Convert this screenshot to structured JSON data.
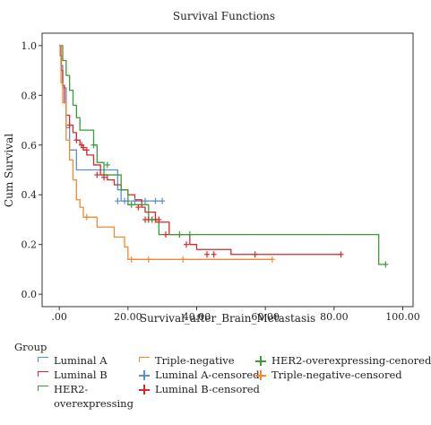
{
  "chart_data": {
    "type": "line",
    "title": "Survival Functions",
    "xlabel": "Survival_after_Brain_Metastasis",
    "ylabel": "Cum Survival",
    "xlim": [
      -5,
      103
    ],
    "ylim": [
      -0.05,
      1.05
    ],
    "x_ticks": [
      0,
      20,
      40,
      60,
      80,
      100
    ],
    "x_tick_labels": [
      ".00",
      "20.00",
      "40.00",
      "60.00",
      "80.00",
      "100.00"
    ],
    "y_ticks": [
      0,
      0.2,
      0.4,
      0.6,
      0.8,
      1.0
    ],
    "y_tick_labels": [
      "0.0",
      "0.2",
      "0.4",
      "0.6",
      "0.8",
      "1.0"
    ],
    "grid": false,
    "legend_position": "bottom",
    "legend_title": "Group",
    "series": [
      {
        "name": "Luminal A",
        "color": "#5b8fd1",
        "kind": "step",
        "points": [
          [
            0,
            1.0
          ],
          [
            0.5,
            0.92
          ],
          [
            1,
            0.83
          ],
          [
            2,
            0.67
          ],
          [
            3,
            0.58
          ],
          [
            5,
            0.5
          ],
          [
            17,
            0.42
          ],
          [
            18,
            0.375
          ],
          [
            30,
            0.375
          ]
        ]
      },
      {
        "name": "Luminal B",
        "color": "#d42a2a",
        "kind": "step",
        "points": [
          [
            0,
            1.0
          ],
          [
            0.3,
            0.96
          ],
          [
            0.6,
            0.9
          ],
          [
            1,
            0.84
          ],
          [
            1.5,
            0.77
          ],
          [
            2,
            0.72
          ],
          [
            3,
            0.68
          ],
          [
            4,
            0.65
          ],
          [
            5,
            0.62
          ],
          [
            6,
            0.6
          ],
          [
            7,
            0.58
          ],
          [
            8,
            0.56
          ],
          [
            10,
            0.52
          ],
          [
            12,
            0.48
          ],
          [
            14,
            0.46
          ],
          [
            16,
            0.44
          ],
          [
            18,
            0.42
          ],
          [
            20,
            0.4
          ],
          [
            22,
            0.38
          ],
          [
            24,
            0.35
          ],
          [
            25,
            0.33
          ],
          [
            28,
            0.29
          ],
          [
            32,
            0.24
          ],
          [
            38,
            0.2
          ],
          [
            40,
            0.18
          ],
          [
            50,
            0.16
          ],
          [
            82,
            0.16
          ]
        ]
      },
      {
        "name": "HER2-overexpressing",
        "color": "#3a9c3a",
        "kind": "step",
        "points": [
          [
            0,
            1.0
          ],
          [
            1,
            0.94
          ],
          [
            2,
            0.88
          ],
          [
            3,
            0.82
          ],
          [
            4,
            0.76
          ],
          [
            5,
            0.71
          ],
          [
            6,
            0.66
          ],
          [
            10,
            0.6
          ],
          [
            11,
            0.53
          ],
          [
            13,
            0.48
          ],
          [
            18,
            0.42
          ],
          [
            20,
            0.36
          ],
          [
            26,
            0.3
          ],
          [
            29,
            0.24
          ],
          [
            93,
            0.24
          ],
          [
            93,
            0.12
          ],
          [
            95,
            0.12
          ]
        ]
      },
      {
        "name": "Triple-negative",
        "color": "#f08a30",
        "kind": "step",
        "points": [
          [
            0,
            1.0
          ],
          [
            0.5,
            0.85
          ],
          [
            1,
            0.77
          ],
          [
            2,
            0.62
          ],
          [
            3,
            0.54
          ],
          [
            4,
            0.46
          ],
          [
            5,
            0.38
          ],
          [
            6,
            0.35
          ],
          [
            7,
            0.31
          ],
          [
            11,
            0.27
          ],
          [
            16,
            0.23
          ],
          [
            19,
            0.19
          ],
          [
            20,
            0.14
          ],
          [
            62,
            0.14
          ]
        ]
      }
    ],
    "censored": [
      {
        "name": "Luminal A-censored",
        "color": "#5b8fd1",
        "points": [
          [
            17,
            0.375
          ],
          [
            19,
            0.375
          ],
          [
            22,
            0.375
          ],
          [
            25,
            0.375
          ],
          [
            28,
            0.375
          ],
          [
            30,
            0.375
          ]
        ]
      },
      {
        "name": "Luminal B-censored",
        "color": "#d42a2a",
        "points": [
          [
            3,
            0.68
          ],
          [
            5,
            0.62
          ],
          [
            6.5,
            0.6
          ],
          [
            7,
            0.59
          ],
          [
            8,
            0.58
          ],
          [
            11,
            0.48
          ],
          [
            13,
            0.47
          ],
          [
            23,
            0.35
          ],
          [
            25,
            0.3
          ],
          [
            26,
            0.3
          ],
          [
            27,
            0.3
          ],
          [
            28,
            0.3
          ],
          [
            29,
            0.3
          ],
          [
            31,
            0.24
          ],
          [
            37,
            0.2
          ],
          [
            43,
            0.16
          ],
          [
            45,
            0.16
          ],
          [
            57,
            0.16
          ],
          [
            82,
            0.16
          ]
        ]
      },
      {
        "name": "HER2-overexpressing-cenored",
        "color": "#3a9c3a",
        "points": [
          [
            10,
            0.6
          ],
          [
            14,
            0.52
          ],
          [
            21,
            0.36
          ],
          [
            27,
            0.3
          ],
          [
            35,
            0.24
          ],
          [
            38,
            0.24
          ],
          [
            95,
            0.12
          ]
        ]
      },
      {
        "name": "Triple-negative-censored",
        "color": "#f08a30",
        "points": [
          [
            8,
            0.31
          ],
          [
            21,
            0.14
          ],
          [
            26,
            0.14
          ],
          [
            36,
            0.14
          ],
          [
            62,
            0.14
          ]
        ]
      }
    ],
    "legend": [
      {
        "label": "Luminal A",
        "color": "#5b8fd1",
        "marker": "line"
      },
      {
        "label": "Triple-negative",
        "color": "#f08a30",
        "marker": "line"
      },
      {
        "label": "HER2-overexpressing-cenored",
        "color": "#3a9c3a",
        "marker": "plus"
      },
      {
        "label": "Luminal B",
        "color": "#d42a2a",
        "marker": "line"
      },
      {
        "label": "Luminal A-censored",
        "color": "#5b8fd1",
        "marker": "plus"
      },
      {
        "label": "Triple-negative-censored",
        "color": "#f08a30",
        "marker": "plus"
      },
      {
        "label": "HER2-overexpressing",
        "color": "#3a9c3a",
        "marker": "line"
      },
      {
        "label": "Luminal B-censored",
        "color": "#d42a2a",
        "marker": "plus"
      }
    ]
  }
}
